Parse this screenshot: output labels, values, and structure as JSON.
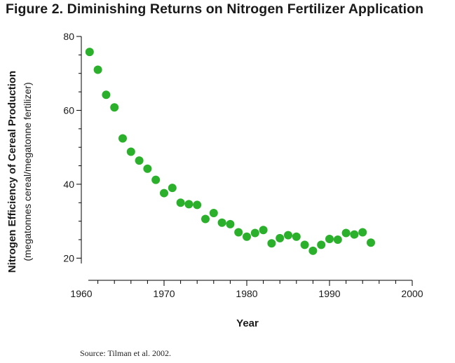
{
  "figure": {
    "title": "Figure 2. Diminishing Returns on Nitrogen Fertilizer Application",
    "source": "Source: Tilman et al. 2002."
  },
  "colors": {
    "point": "#2bb02b",
    "axis": "#000000"
  },
  "chart_data": {
    "type": "scatter",
    "title": "Figure 2. Diminishing Returns on Nitrogen Fertilizer Application",
    "xlabel": "Year",
    "ylabel": "Nitrogen Efficiency of Cereal Production",
    "ylabel_sub": "(megatonnes cereal/megatonne fertilizer)",
    "xlim": [
      1960,
      2000
    ],
    "ylim": [
      14,
      80
    ],
    "xticks": [
      1960,
      1970,
      1980,
      1990,
      2000
    ],
    "yticks": [
      20,
      40,
      60,
      80
    ],
    "grid": false,
    "series": [
      {
        "x": [
          1961,
          1962,
          1963,
          1964,
          1965,
          1966,
          1967,
          1968,
          1969,
          1970,
          1971,
          1972,
          1973,
          1974,
          1975,
          1976,
          1977,
          1978,
          1979,
          1980,
          1981,
          1982,
          1983,
          1984,
          1985,
          1986,
          1987,
          1988,
          1989,
          1990,
          1991,
          1992,
          1993,
          1994,
          1995
        ],
        "y": [
          75.8,
          71.0,
          64.2,
          60.8,
          52.4,
          48.8,
          46.4,
          44.2,
          41.2,
          37.6,
          39.0,
          35.0,
          34.6,
          34.4,
          30.6,
          32.2,
          29.6,
          29.2,
          27.0,
          25.8,
          26.8,
          27.6,
          24.0,
          25.4,
          26.2,
          25.8,
          23.6,
          22.0,
          23.6,
          25.2,
          25.0,
          26.8,
          26.4,
          27.0,
          24.2
        ]
      }
    ]
  }
}
